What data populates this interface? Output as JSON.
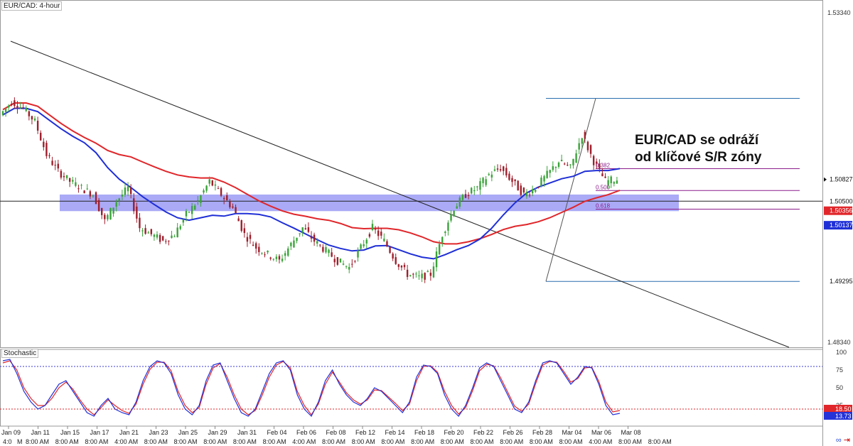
{
  "header": {
    "symbol_title": "EUR/CAD: 4-hour"
  },
  "indicator": {
    "title": "Stochastic"
  },
  "annotation": {
    "line1": "EUR/CAD se odráží",
    "line2": "od klíčové S/R zóny"
  },
  "colors": {
    "bull": "#3aa33a",
    "bear": "#9e1f2c",
    "ma_fast": "#1f2fd6",
    "ma_slow": "#e0262a",
    "zone": "#8e8ef4",
    "fib": "#8b1d8b",
    "level_line": "#2a6fb0",
    "stoch_k": "#2432d8",
    "stoch_d": "#e0262a"
  },
  "chart_data": {
    "type": "candlestick",
    "title": "EUR/CAD: 4-hour",
    "ylim": [
      1.4834,
      1.5334
    ],
    "price_ticks": [
      "1.53340",
      "1.48340"
    ],
    "price_labels": [
      {
        "value": 1.50827,
        "text": "1.50827",
        "style": "current"
      },
      {
        "value": 1.505,
        "text": "1.50500",
        "style": "plain"
      },
      {
        "value": 1.50356,
        "text": "1.50356",
        "style": "red"
      },
      {
        "value": 1.50137,
        "text": "1.50137",
        "style": "blue"
      },
      {
        "value": 1.49295,
        "text": "1.49295",
        "style": "plain"
      }
    ],
    "x_tick_labels": [
      "Jan 09",
      "Jan 11",
      "Jan 15",
      "Jan 17",
      "Jan 21",
      "Jan 23",
      "Jan 25",
      "Jan 29",
      "Jan 31",
      "Feb 04",
      "Feb 06",
      "Feb 08",
      "Feb 12",
      "Feb 14",
      "Feb 18",
      "Feb 20",
      "Feb 22",
      "Feb 26",
      "Feb 28",
      "Mar 04",
      "Mar 06",
      "Mar 08"
    ],
    "x_time_labels": [
      "4:0",
      "M",
      "8:00 AM",
      "8:00 AM",
      "8:00 AM",
      "4:00 AM",
      "8:00 AM",
      "8:00 AM",
      "8:00 AM",
      "8:00 AM",
      "8:00 AM",
      "4:00 AM",
      "8:00 AM",
      "8:00 AM",
      "8:00 AM",
      "8:00 AM",
      "8:00 AM",
      "8:00 AM",
      "8:00 AM",
      "8:00 AM",
      "8:00 AM",
      "4:00 AM",
      "8:00 AM",
      "8:00 AM"
    ],
    "candles_close_path": [
      1.518,
      1.52,
      1.519,
      1.517,
      1.512,
      1.5095,
      1.508,
      1.507,
      1.506,
      1.502,
      1.505,
      1.507,
      1.501,
      1.5,
      1.499,
      1.5,
      1.503,
      1.505,
      1.508,
      1.506,
      1.504,
      1.5,
      1.498,
      1.497,
      1.496,
      1.4985,
      1.501,
      1.499,
      1.4975,
      1.496,
      1.495,
      1.498,
      1.501,
      1.499,
      1.496,
      1.494,
      1.4935,
      1.494,
      1.5,
      1.504,
      1.506,
      1.507,
      1.509,
      1.51,
      1.508,
      1.506,
      1.507,
      1.509,
      1.511,
      1.51,
      1.515,
      1.511,
      1.508,
      1.5083
    ],
    "candle_range": [
      0,
      53
    ],
    "hline_support": 1.505,
    "zone": [
      1.5035,
      1.506
    ],
    "level_top": 1.5205,
    "level_bottom": 1.4929,
    "fib_levels": [
      {
        "label": "0.382",
        "value": 1.5099
      },
      {
        "label": "0.500",
        "value": 1.5066
      },
      {
        "label": "0.618",
        "value": 1.5038
      }
    ],
    "stochastic": {
      "ylim": [
        0,
        100
      ],
      "ticks": [
        "100",
        "75",
        "50",
        "25"
      ],
      "overbought": 80,
      "oversold": 20,
      "current_labels": [
        "13.73",
        "18.50"
      ],
      "k": [
        88,
        90,
        70,
        45,
        30,
        20,
        25,
        40,
        55,
        60,
        45,
        30,
        15,
        10,
        25,
        35,
        20,
        15,
        12,
        30,
        60,
        80,
        88,
        85,
        70,
        40,
        20,
        12,
        25,
        60,
        82,
        85,
        60,
        35,
        15,
        10,
        20,
        45,
        70,
        85,
        88,
        75,
        40,
        20,
        10,
        30,
        60,
        75,
        55,
        40,
        30,
        25,
        35,
        50,
        45,
        35,
        25,
        15,
        30,
        65,
        82,
        80,
        70,
        40,
        20,
        10,
        25,
        50,
        78,
        85,
        80,
        60,
        40,
        20,
        15,
        30,
        60,
        85,
        88,
        85,
        70,
        55,
        65,
        80,
        78,
        55,
        25,
        12,
        14
      ],
      "d": [
        85,
        88,
        75,
        50,
        35,
        25,
        25,
        35,
        50,
        58,
        48,
        33,
        20,
        12,
        22,
        33,
        25,
        18,
        14,
        27,
        55,
        76,
        86,
        86,
        74,
        45,
        25,
        15,
        22,
        55,
        78,
        84,
        65,
        40,
        20,
        12,
        18,
        40,
        65,
        82,
        87,
        78,
        45,
        25,
        12,
        27,
        55,
        72,
        58,
        43,
        33,
        27,
        33,
        47,
        46,
        37,
        28,
        18,
        27,
        60,
        80,
        81,
        72,
        45,
        25,
        13,
        22,
        46,
        74,
        83,
        81,
        64,
        44,
        24,
        17,
        27,
        56,
        82,
        87,
        86,
        73,
        58,
        63,
        78,
        79,
        59,
        30,
        16,
        18
      ]
    }
  }
}
